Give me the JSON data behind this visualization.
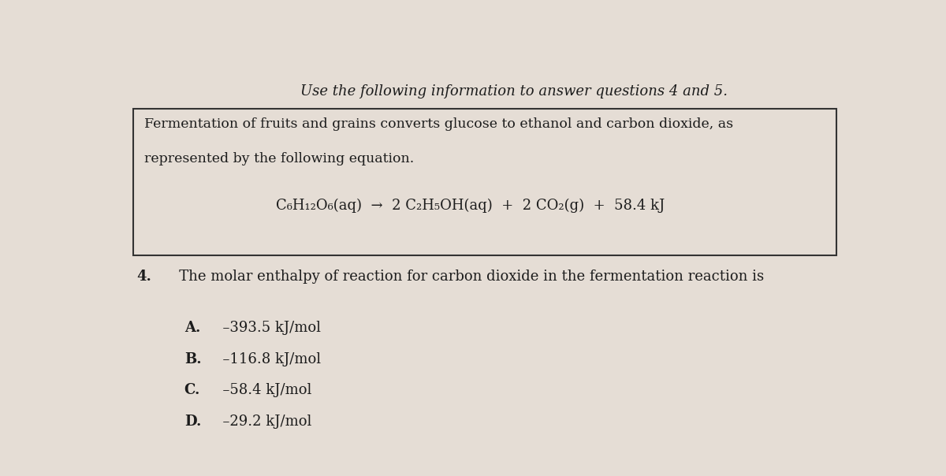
{
  "bg_color": "#e5ddd5",
  "text_color": "#1c1c1c",
  "fig_width": 12.0,
  "fig_height": 6.04,
  "header": "Use the following information to answer questions 4 and 5.",
  "box_line1": "Fermentation of fruits and grains converts glucose to ethanol and carbon dioxide, as",
  "box_line2": "represented by the following equation.",
  "equation": "C₆H₁₂O₆(aq)  →  2 C₂H₅OH(aq)  +  2 CO₂(g)  +  58.4 kJ",
  "q4_label": "4.",
  "q4_text": "   The molar enthalpy of reaction for carbon dioxide in the fermentation reaction is",
  "options": [
    [
      "A.",
      "  –393.5 kJ/mol"
    ],
    [
      "B.",
      "  –116.8 kJ/mol"
    ],
    [
      "C.",
      "  –58.4 kJ/mol"
    ],
    [
      "D.",
      "  –29.2 kJ/mol"
    ]
  ]
}
